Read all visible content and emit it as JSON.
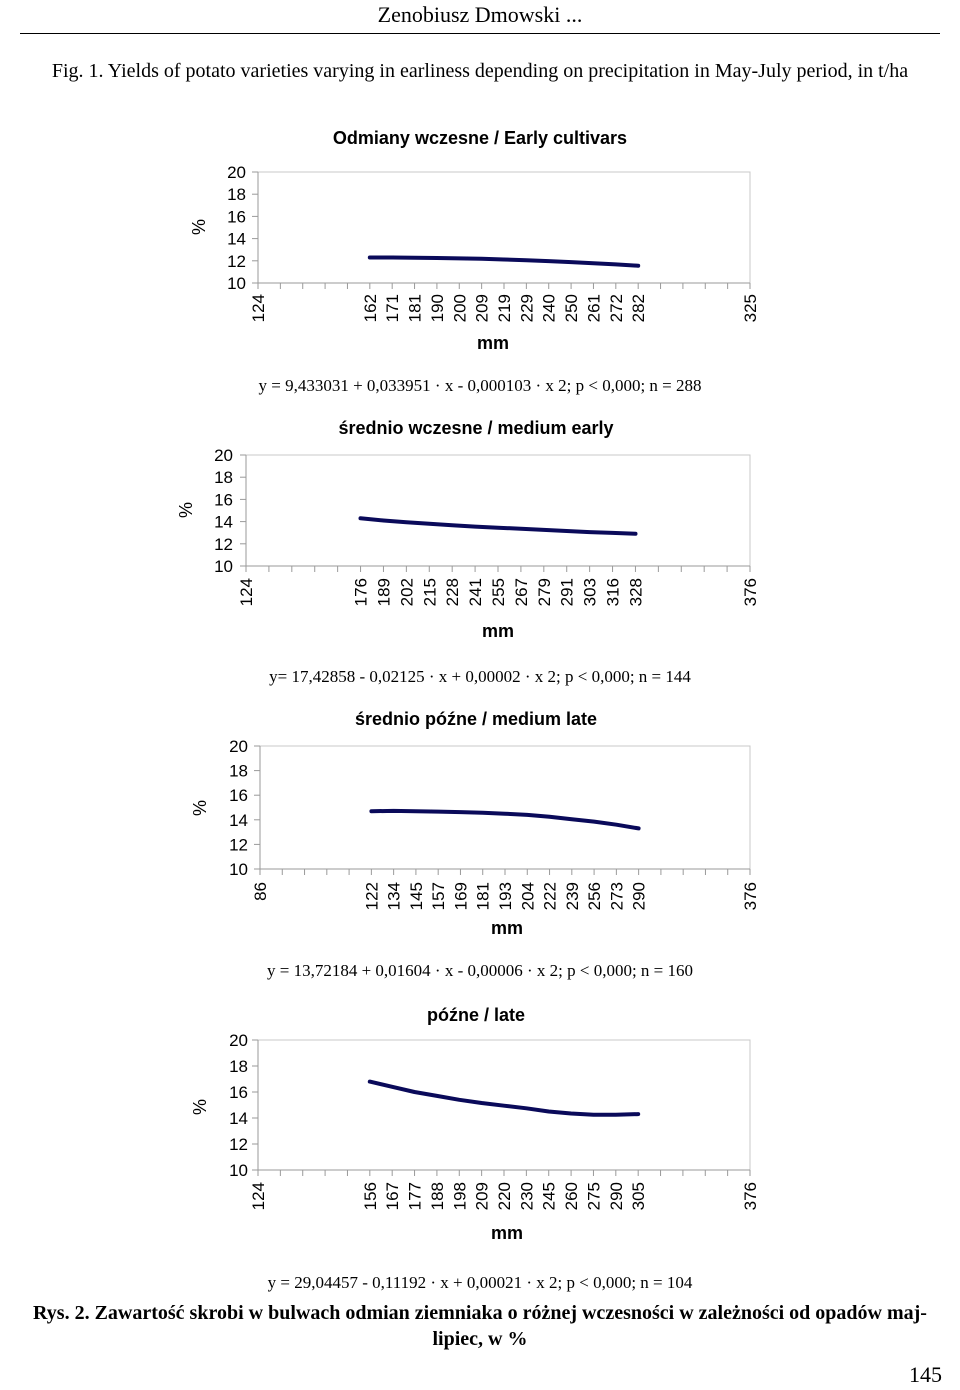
{
  "header": {
    "running_title": "Zenobiusz Dmowski ..."
  },
  "figure_caption": "Fig. 1. Yields of potato varieties varying in earliness depending on precipitation in May-July period, in t/ha",
  "rys_caption": "Rys. 2. Zawartość skrobi w bulwach odmian ziemniaka o różnej wczesności w zależności od opadów maj-lipiec, w %",
  "page_number": "145",
  "colors": {
    "curve": "#0a0a5a",
    "axis": "#9a9a9a",
    "text": "#000000"
  },
  "chart_data": [
    {
      "type": "line",
      "title": "Odmiany wczesne / Early cultivars",
      "ylabel": "%",
      "xlabel": "mm",
      "ylim": [
        10,
        20
      ],
      "y_ticks": [
        "20",
        "18",
        "16",
        "14",
        "12",
        "10"
      ],
      "x_ticks": [
        "124",
        "",
        "",
        "",
        "",
        "162",
        "171",
        "181",
        "190",
        "200",
        "209",
        "219",
        "229",
        "240",
        "250",
        "261",
        "272",
        "282",
        "",
        "",
        "",
        "",
        "325"
      ],
      "series": [
        {
          "x": [
            162,
            171,
            181,
            190,
            200,
            209,
            219,
            229,
            240,
            250,
            261,
            272,
            282
          ],
          "values": [
            12.3,
            12.3,
            12.28,
            12.25,
            12.22,
            12.18,
            12.12,
            12.05,
            11.97,
            11.88,
            11.78,
            11.68,
            11.56
          ]
        }
      ],
      "equation": "y = 9,433031 + 0,033951 · x - 0,000103 · x 2; p < 0,000; n = 288"
    },
    {
      "type": "line",
      "title": "średnio wczesne / medium early",
      "ylabel": "%",
      "xlabel": "mm",
      "ylim": [
        10,
        20
      ],
      "y_ticks": [
        "20",
        "18",
        "16",
        "14",
        "12",
        "10"
      ],
      "x_ticks": [
        "124",
        "",
        "",
        "",
        "",
        "176",
        "189",
        "202",
        "215",
        "228",
        "241",
        "255",
        "267",
        "279",
        "291",
        "303",
        "316",
        "328",
        "",
        "",
        "",
        "",
        "376"
      ],
      "series": [
        {
          "x": [
            176,
            189,
            202,
            215,
            228,
            241,
            255,
            267,
            279,
            291,
            303,
            316,
            328
          ],
          "values": [
            14.3,
            14.1,
            13.95,
            13.8,
            13.68,
            13.55,
            13.45,
            13.35,
            13.25,
            13.15,
            13.05,
            12.98,
            12.9
          ]
        }
      ],
      "equation": "y= 17,42858 - 0,02125 · x + 0,00002 · x 2; p < 0,000; n = 144"
    },
    {
      "type": "line",
      "title": "średnio późne / medium late",
      "ylabel": "%",
      "xlabel": "mm",
      "ylim": [
        10,
        20
      ],
      "y_ticks": [
        "20",
        "18",
        "16",
        "14",
        "12",
        "10"
      ],
      "x_ticks": [
        "86",
        "",
        "",
        "",
        "",
        "122",
        "134",
        "145",
        "157",
        "169",
        "181",
        "193",
        "204",
        "222",
        "239",
        "256",
        "273",
        "290",
        "",
        "",
        "",
        "",
        "376"
      ],
      "series": [
        {
          "x": [
            122,
            134,
            145,
            157,
            169,
            181,
            193,
            204,
            222,
            239,
            256,
            273,
            290
          ],
          "values": [
            14.7,
            14.72,
            14.7,
            14.67,
            14.63,
            14.58,
            14.5,
            14.4,
            14.25,
            14.05,
            13.85,
            13.6,
            13.3
          ]
        }
      ],
      "equation": "y = 13,72184 + 0,01604 · x - 0,00006 · x 2; p < 0,000; n = 160"
    },
    {
      "type": "line",
      "title": "późne / late",
      "ylabel": "%",
      "xlabel": "mm",
      "ylim": [
        10,
        20
      ],
      "y_ticks": [
        "20",
        "18",
        "16",
        "14",
        "12",
        "10"
      ],
      "x_ticks": [
        "124",
        "",
        "",
        "",
        "",
        "156",
        "167",
        "177",
        "188",
        "198",
        "209",
        "220",
        "230",
        "245",
        "260",
        "275",
        "290",
        "305",
        "",
        "",
        "",
        "",
        "376"
      ],
      "series": [
        {
          "x": [
            156,
            167,
            177,
            188,
            198,
            209,
            220,
            230,
            245,
            260,
            275,
            290,
            305
          ],
          "values": [
            16.8,
            16.4,
            16.0,
            15.7,
            15.4,
            15.15,
            14.95,
            14.75,
            14.5,
            14.35,
            14.25,
            14.25,
            14.3
          ]
        }
      ],
      "equation": "y = 29,04457 - 0,11192 · x + 0,00021 · x 2; p < 0,000; n = 104"
    }
  ]
}
